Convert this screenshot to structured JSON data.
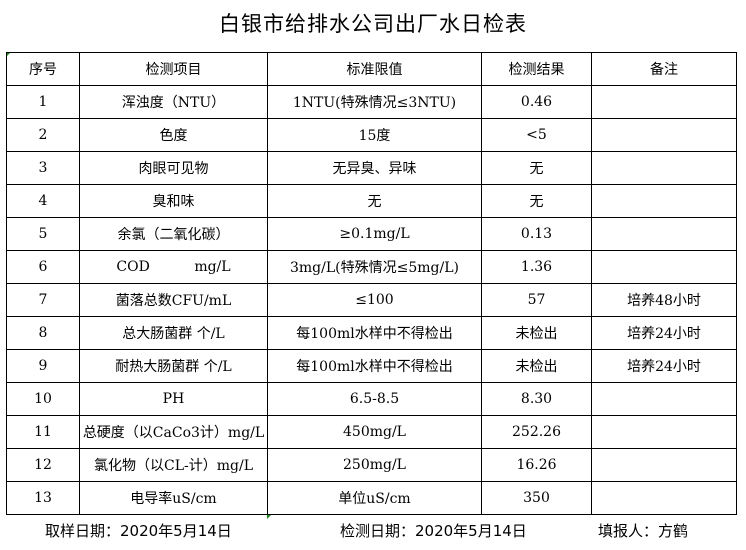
{
  "title": "白银市给排水公司出厂水日检表",
  "headers": [
    "序号",
    "检测项目",
    "标准限值",
    "检测结果",
    "备注"
  ],
  "rows": [
    [
      "1",
      "浑浊度（NTU）",
      "1NTU(特殊情况≤3NTU)",
      "0.46",
      ""
    ],
    [
      "2",
      "色度",
      "15度",
      "<5",
      ""
    ],
    [
      "3",
      "肉眼可见物",
      "无异臭、异味",
      "无",
      ""
    ],
    [
      "4",
      "臭和味",
      "无",
      "无",
      ""
    ],
    [
      "5",
      "余氯（二氧化碳）",
      "≥0.1mg/L",
      "0.13",
      ""
    ],
    [
      "6",
      "COD          mg/L",
      "3mg/L(特殊情况≤5mg/L)",
      "1.36",
      ""
    ],
    [
      "7",
      "菌落总数CFU/mL",
      "≤100",
      "57",
      "培养48小时"
    ],
    [
      "8",
      "总大肠菌群 个/L",
      "每100ml水样中不得检出",
      "未检出",
      "培养24小时"
    ],
    [
      "9",
      "耐热大肠菌群 个/L",
      "每100ml水样中不得检出",
      "未检出",
      "培养24小时"
    ],
    [
      "10",
      "PH",
      "6.5-8.5",
      "8.30",
      ""
    ],
    [
      "11",
      "总硬度（以CaCo3计）mg/L",
      "450mg/L",
      "252.26",
      ""
    ],
    [
      "12",
      "氯化物（以CL-计）mg/L",
      "250mg/L",
      "16.26",
      ""
    ],
    [
      "13",
      "电导率uS/cm",
      "单位uS/cm",
      "350",
      ""
    ]
  ],
  "footer": {
    "sample_date": "取样日期：2020年5月14日",
    "test_date": "检测日期：2020年5月14日",
    "reporter": "填报人：方鹤"
  }
}
